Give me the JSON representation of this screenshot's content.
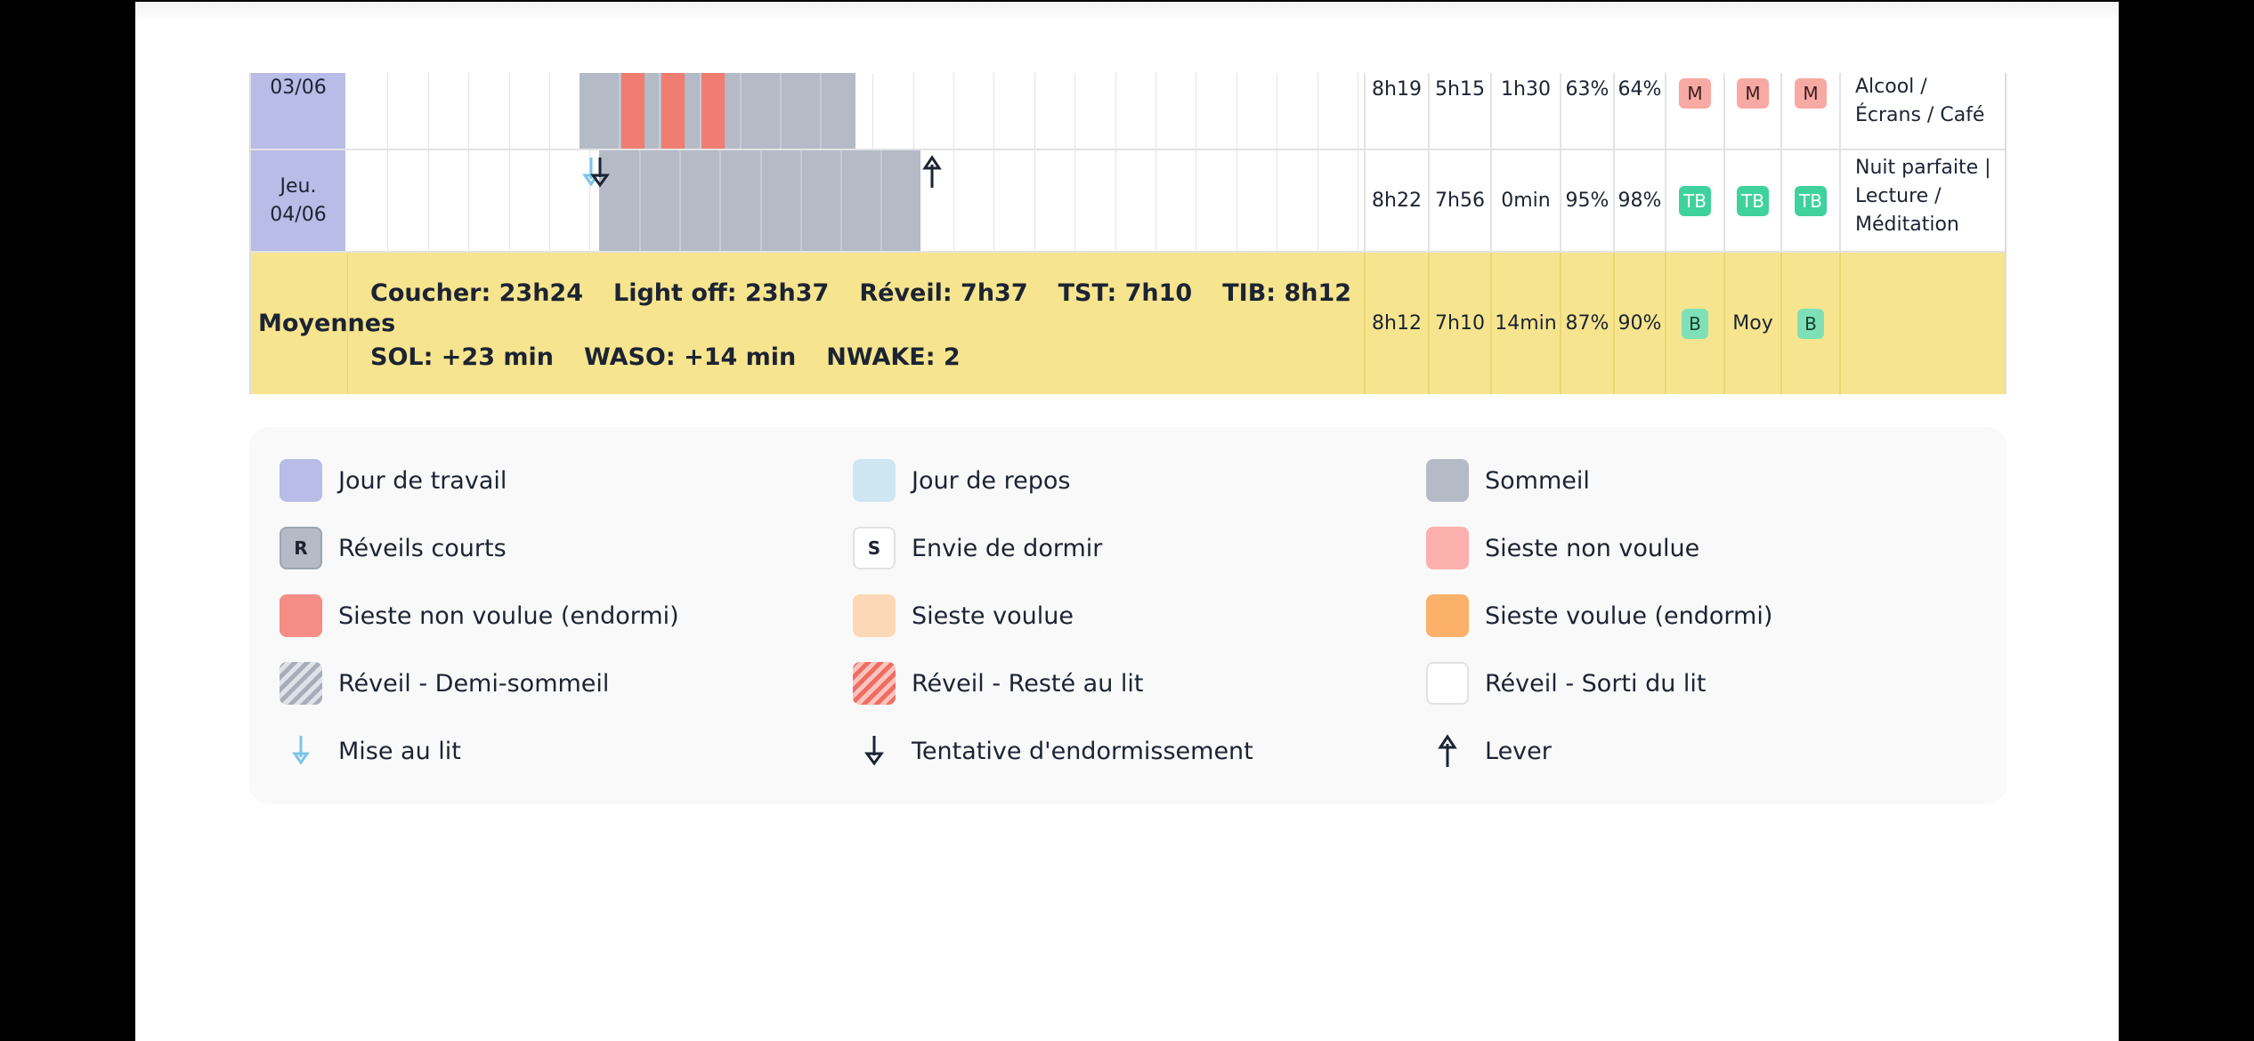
{
  "rows": [
    {
      "day_line1": "03/06",
      "day_line2": "",
      "tib": "8h19",
      "tst": "5h15",
      "waso": "1h30",
      "se": "63%",
      "sq": "64%",
      "badges": [
        "M",
        "M",
        "M"
      ],
      "comment": [
        "Alcool /",
        "Écrans / Café"
      ]
    },
    {
      "day_line1": "Jeu.",
      "day_line2": "04/06",
      "tib": "8h22",
      "tst": "7h56",
      "waso": "0min",
      "se": "95%",
      "sq": "98%",
      "badges": [
        "TB",
        "TB",
        "TB"
      ],
      "comment": [
        "Nuit parfaite |",
        "Lecture /",
        "Méditation"
      ]
    }
  ],
  "averages": {
    "label": "Moyennes",
    "line1": [
      "Coucher: 23h24",
      "Light off: 23h37",
      "Réveil: 7h37",
      "TST: 7h10",
      "TIB: 8h12"
    ],
    "line2": [
      "SOL: +23 min",
      "WASO: +14 min",
      "NWAKE: 2"
    ],
    "tib": "8h12",
    "tst": "7h10",
    "waso": "14min",
    "se": "87%",
    "sq": "90%",
    "badges": [
      "B",
      "Moy",
      "B"
    ]
  },
  "legend": [
    {
      "label": "Jour de travail",
      "swatch": "#b8bce6",
      "icon": "work-day-swatch"
    },
    {
      "label": "Jour de repos",
      "swatch": "#cde6f2",
      "icon": "rest-day-swatch"
    },
    {
      "label": "Sommeil",
      "swatch": "#b4bac6",
      "icon": "sleep-swatch"
    },
    {
      "label": "Réveils courts",
      "swatch": "#b4bac6",
      "letter": "R",
      "icon": "short-wake-swatch"
    },
    {
      "label": "Envie de dormir",
      "swatch": "#ffffff",
      "letter": "S",
      "icon": "sleepiness-swatch"
    },
    {
      "label": "Sieste non voulue",
      "swatch": "#fbb0ae",
      "icon": "unwanted-nap-swatch"
    },
    {
      "label": "Sieste non voulue (endormi)",
      "swatch": "#f58d87",
      "icon": "unwanted-nap-asleep-swatch"
    },
    {
      "label": "Sieste voulue",
      "swatch": "#fdd8b6",
      "icon": "wanted-nap-swatch"
    },
    {
      "label": "Sieste voulue (endormi)",
      "swatch": "#fbb169",
      "icon": "wanted-nap-asleep-swatch"
    },
    {
      "label": "Réveil - Demi-sommeil",
      "swatch": "hatch-grey",
      "icon": "half-sleep-swatch"
    },
    {
      "label": "Réveil - Resté au lit",
      "swatch": "hatch-red",
      "icon": "stayed-in-bed-swatch"
    },
    {
      "label": "Réveil - Sorti du lit",
      "swatch": "#ffffff",
      "icon": "got-out-of-bed-swatch"
    },
    {
      "label": "Mise au lit",
      "icon": "bedtime-arrow-icon"
    },
    {
      "label": "Tentative d'endormissement",
      "icon": "sleep-attempt-arrow-icon"
    },
    {
      "label": "Lever",
      "icon": "get-up-arrow-icon"
    }
  ]
}
